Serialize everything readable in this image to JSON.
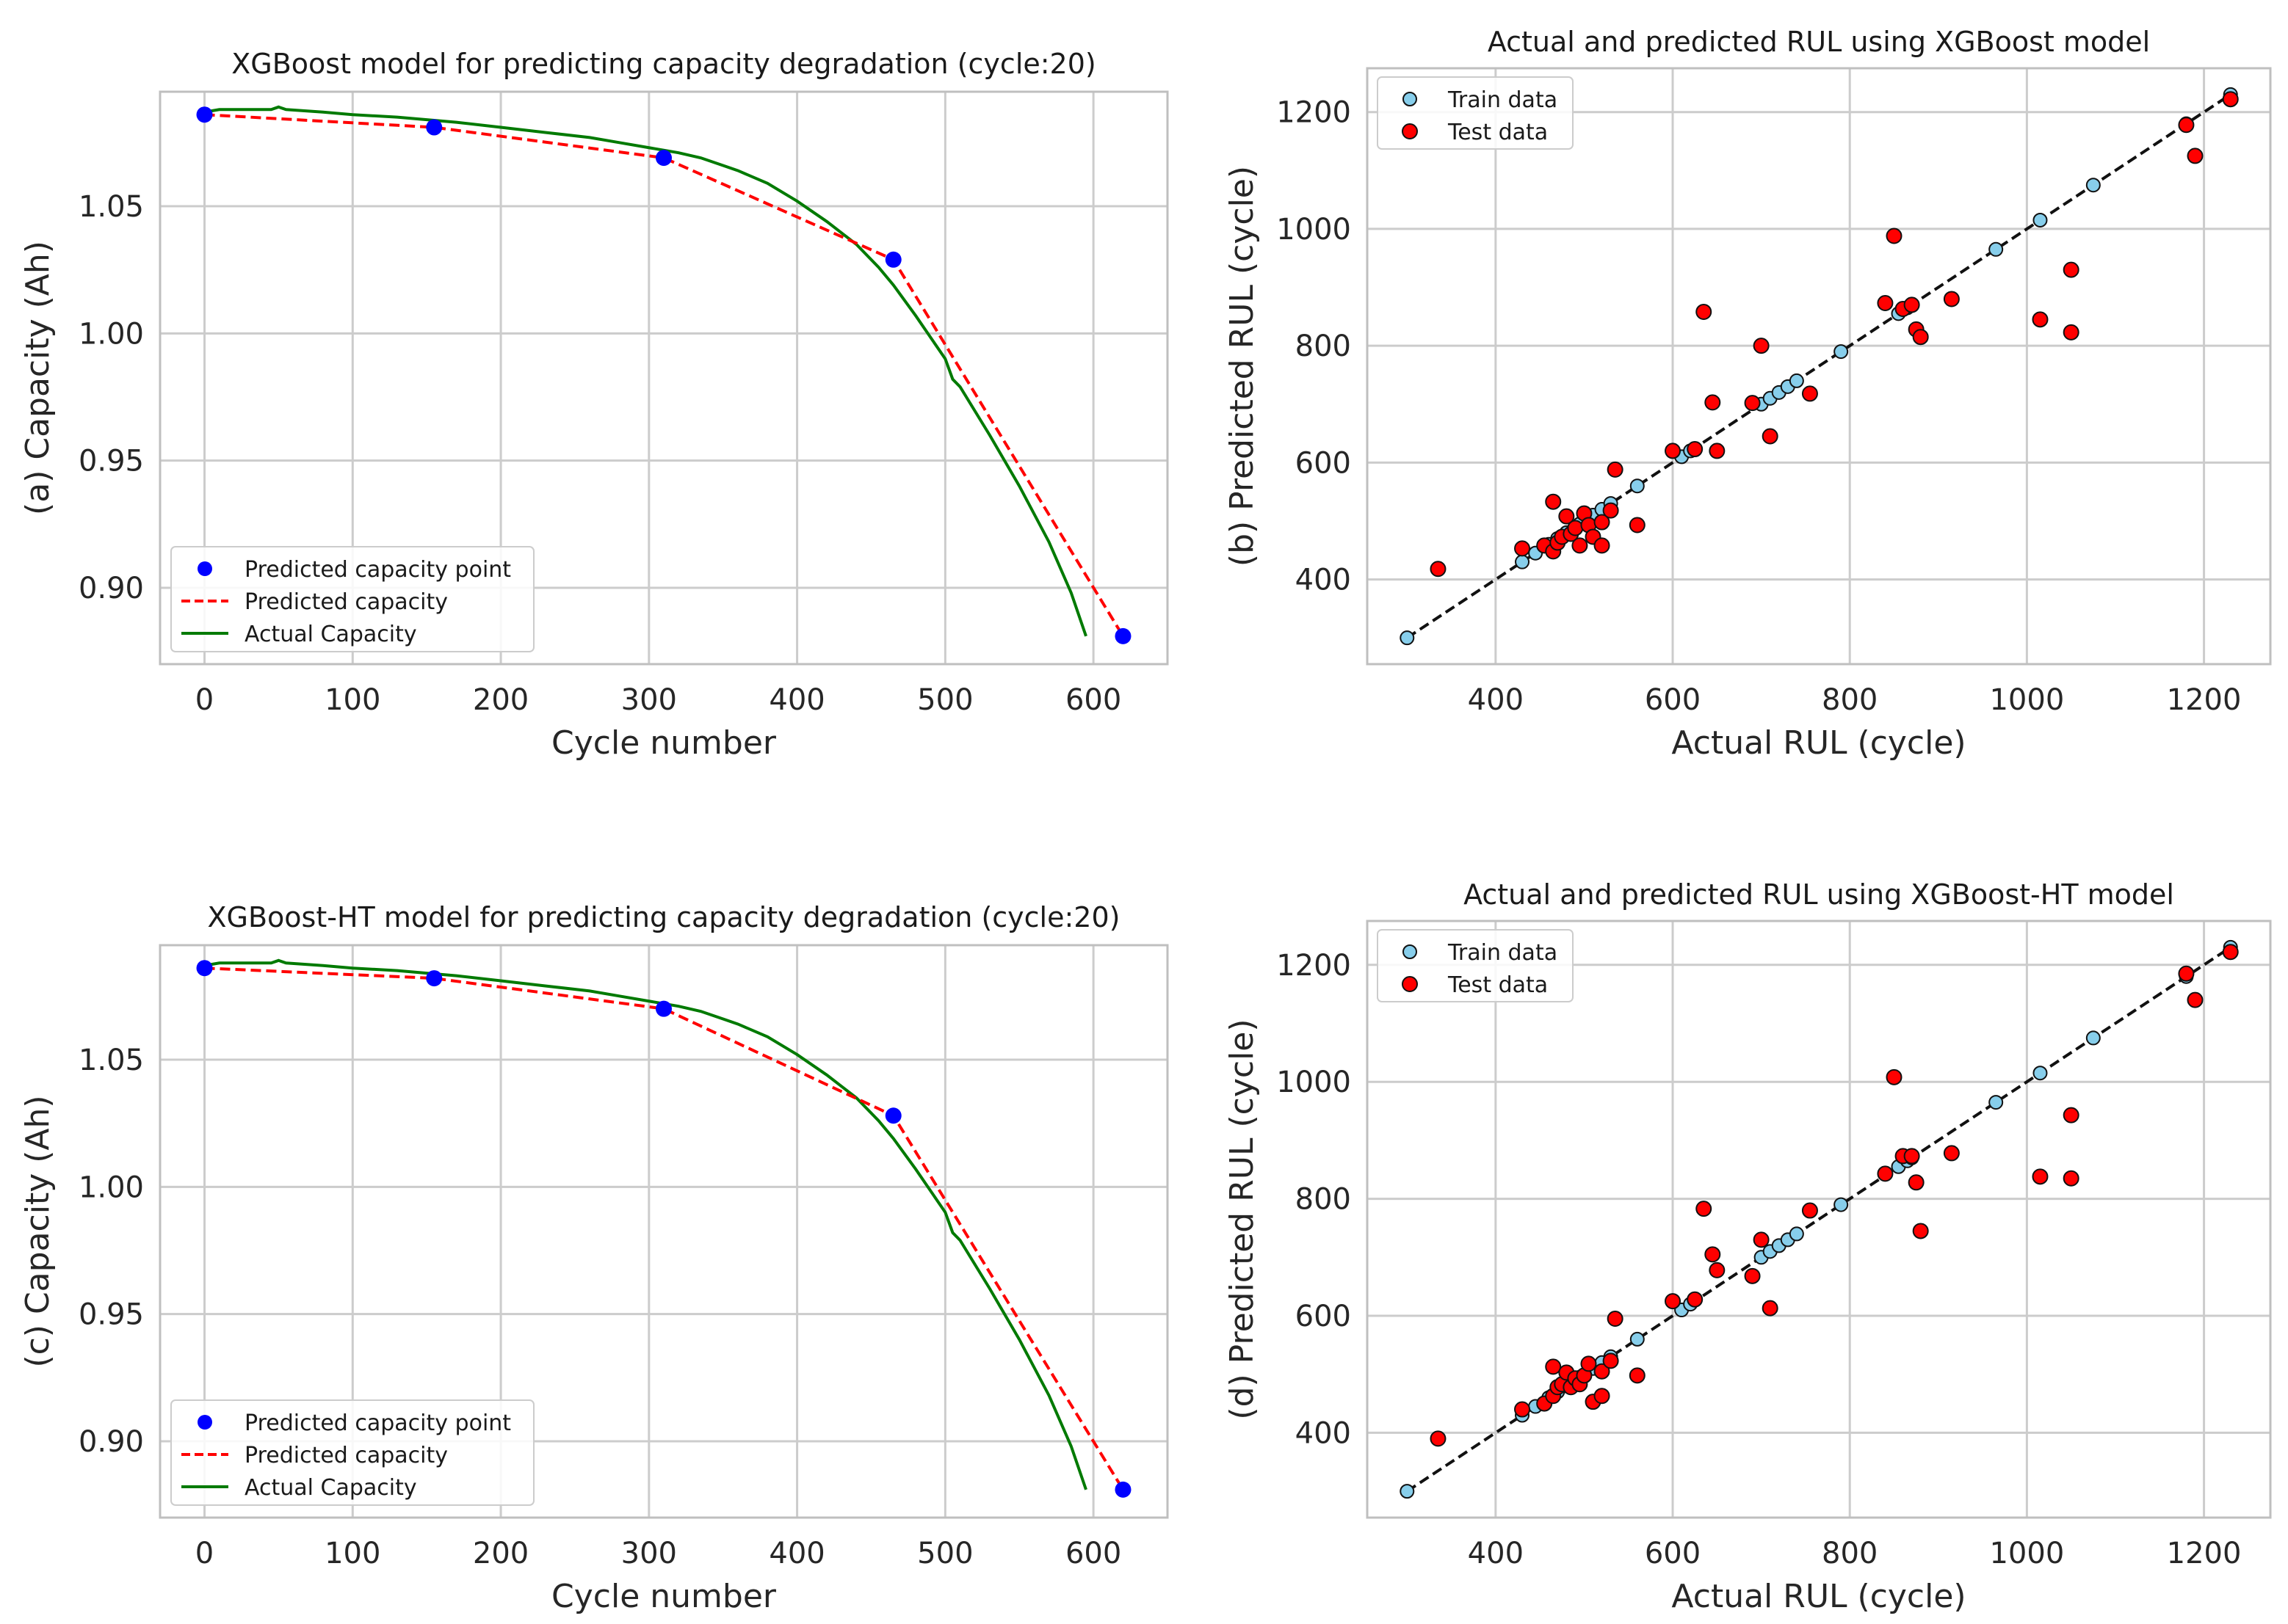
{
  "chart_data": [
    {
      "type": "line",
      "panel": "a",
      "title": "XGBoost model for predicting capacity degradation (cycle:20)",
      "xlabel": "Cycle number",
      "ylabel": "(a) Capacity (Ah)",
      "xlim": [
        -30,
        650
      ],
      "ylim": [
        0.87,
        1.095
      ],
      "xticks": [
        0,
        100,
        200,
        300,
        400,
        500,
        600
      ],
      "yticks": [
        0.9,
        0.95,
        1.0,
        1.05
      ],
      "ytick_labels": [
        "0.90",
        "0.95",
        "1.00",
        "1.05"
      ],
      "grid": true,
      "legend": "lower-left",
      "legend_entries": [
        "Predicted capacity point",
        "Predicted capacity",
        "Actual Capacity"
      ],
      "predicted_points": {
        "x": [
          0,
          155,
          310,
          465,
          620
        ],
        "y": [
          1.086,
          1.081,
          1.069,
          1.029,
          0.881
        ]
      },
      "actual": {
        "x": [
          0,
          10,
          30,
          45,
          50,
          55,
          80,
          100,
          130,
          150,
          170,
          200,
          230,
          260,
          280,
          300,
          320,
          335,
          350,
          360,
          380,
          400,
          420,
          440,
          455,
          465,
          480,
          500,
          505,
          510,
          530,
          550,
          570,
          585,
          595
        ],
        "y": [
          1.087,
          1.088,
          1.088,
          1.088,
          1.089,
          1.088,
          1.087,
          1.086,
          1.085,
          1.084,
          1.083,
          1.081,
          1.079,
          1.077,
          1.075,
          1.073,
          1.071,
          1.069,
          1.066,
          1.064,
          1.059,
          1.052,
          1.044,
          1.035,
          1.026,
          1.019,
          1.007,
          0.99,
          0.982,
          0.979,
          0.96,
          0.94,
          0.918,
          0.898,
          0.881
        ]
      },
      "colors": {
        "points": "#0000ff",
        "predicted": "#ff0000",
        "actual": "#007a00"
      }
    },
    {
      "type": "scatter",
      "panel": "b",
      "title": "Actual and predicted RUL using XGBoost model",
      "xlabel": "Actual RUL (cycle)",
      "ylabel": "(b) Predicted RUL (cycle)",
      "xlim": [
        255,
        1275
      ],
      "ylim": [
        255,
        1275
      ],
      "xticks": [
        400,
        600,
        800,
        1000,
        1200
      ],
      "yticks": [
        400,
        600,
        800,
        1000,
        1200
      ],
      "grid": true,
      "legend": "top-left",
      "legend_entries": [
        "Train data",
        "Test data"
      ],
      "diagonal": [
        [
          300,
          300
        ],
        [
          1230,
          1230
        ]
      ],
      "series": [
        {
          "name": "Train data",
          "x": [
            300,
            430,
            445,
            460,
            470,
            480,
            495,
            510,
            520,
            530,
            560,
            610,
            620,
            700,
            710,
            720,
            730,
            740,
            790,
            855,
            865,
            870,
            965,
            1015,
            1075,
            1180,
            1230
          ],
          "y": [
            300,
            430,
            445,
            460,
            470,
            480,
            495,
            510,
            520,
            530,
            560,
            610,
            620,
            700,
            710,
            720,
            730,
            740,
            790,
            855,
            865,
            870,
            965,
            1015,
            1075,
            1180,
            1230
          ]
        },
        {
          "name": "Test data",
          "x": [
            335,
            430,
            455,
            465,
            465,
            470,
            475,
            480,
            485,
            490,
            495,
            500,
            505,
            510,
            520,
            520,
            530,
            535,
            560,
            600,
            625,
            635,
            645,
            650,
            690,
            700,
            710,
            755,
            840,
            850,
            860,
            870,
            875,
            880,
            915,
            1015,
            1050,
            1050,
            1180,
            1190,
            1230
          ],
          "y": [
            418,
            453,
            458,
            448,
            533,
            463,
            473,
            508,
            478,
            488,
            458,
            513,
            493,
            473,
            498,
            458,
            518,
            588,
            493,
            620,
            623,
            858,
            703,
            620,
            702,
            800,
            645,
            718,
            873,
            988,
            863,
            870,
            828,
            815,
            880,
            845,
            930,
            823,
            1178,
            1125,
            1222
          ]
        }
      ],
      "colors": {
        "train": "#87ceeb",
        "test": "#ff0000",
        "diagonal": "#111111"
      }
    },
    {
      "type": "line",
      "panel": "c",
      "title": "XGBoost-HT model for predicting capacity degradation (cycle:20)",
      "xlabel": "Cycle number",
      "ylabel": "(c) Capacity (Ah)",
      "xlim": [
        -30,
        650
      ],
      "ylim": [
        0.87,
        1.095
      ],
      "xticks": [
        0,
        100,
        200,
        300,
        400,
        500,
        600
      ],
      "yticks": [
        0.9,
        0.95,
        1.0,
        1.05
      ],
      "ytick_labels": [
        "0.90",
        "0.95",
        "1.00",
        "1.05"
      ],
      "grid": true,
      "legend": "lower-left",
      "legend_entries": [
        "Predicted capacity point",
        "Predicted capacity",
        "Actual Capacity"
      ],
      "predicted_points": {
        "x": [
          0,
          155,
          310,
          465,
          620
        ],
        "y": [
          1.086,
          1.082,
          1.07,
          1.028,
          0.881
        ]
      },
      "actual": {
        "x": [
          0,
          10,
          30,
          45,
          50,
          55,
          80,
          100,
          130,
          150,
          170,
          200,
          230,
          260,
          280,
          300,
          320,
          335,
          350,
          360,
          380,
          400,
          420,
          440,
          455,
          465,
          480,
          500,
          505,
          510,
          530,
          550,
          570,
          585,
          595
        ],
        "y": [
          1.087,
          1.088,
          1.088,
          1.088,
          1.089,
          1.088,
          1.087,
          1.086,
          1.085,
          1.084,
          1.083,
          1.081,
          1.079,
          1.077,
          1.075,
          1.073,
          1.071,
          1.069,
          1.066,
          1.064,
          1.059,
          1.052,
          1.044,
          1.035,
          1.026,
          1.019,
          1.007,
          0.99,
          0.982,
          0.979,
          0.96,
          0.94,
          0.918,
          0.898,
          0.881
        ]
      },
      "colors": {
        "points": "#0000ff",
        "predicted": "#ff0000",
        "actual": "#007a00"
      }
    },
    {
      "type": "scatter",
      "panel": "d",
      "title": "Actual and predicted RUL using XGBoost-HT model",
      "xlabel": "Actual RUL (cycle)",
      "ylabel": "(d) Predicted RUL (cycle)",
      "xlim": [
        255,
        1275
      ],
      "ylim": [
        255,
        1275
      ],
      "xticks": [
        400,
        600,
        800,
        1000,
        1200
      ],
      "yticks": [
        400,
        600,
        800,
        1000,
        1200
      ],
      "grid": true,
      "legend": "top-left",
      "legend_entries": [
        "Train data",
        "Test data"
      ],
      "diagonal": [
        [
          300,
          300
        ],
        [
          1230,
          1230
        ]
      ],
      "series": [
        {
          "name": "Train data",
          "x": [
            300,
            430,
            445,
            460,
            470,
            480,
            495,
            510,
            520,
            530,
            560,
            610,
            620,
            700,
            710,
            720,
            730,
            740,
            790,
            855,
            865,
            870,
            965,
            1015,
            1075,
            1180,
            1230
          ],
          "y": [
            300,
            430,
            445,
            460,
            470,
            480,
            495,
            510,
            520,
            530,
            560,
            610,
            620,
            700,
            710,
            720,
            730,
            740,
            790,
            855,
            865,
            870,
            965,
            1015,
            1075,
            1180,
            1230
          ]
        },
        {
          "name": "Test data",
          "x": [
            335,
            430,
            455,
            465,
            465,
            470,
            475,
            480,
            485,
            490,
            495,
            500,
            505,
            510,
            520,
            520,
            530,
            535,
            560,
            600,
            625,
            635,
            645,
            650,
            690,
            700,
            710,
            755,
            840,
            850,
            860,
            870,
            875,
            880,
            915,
            1015,
            1050,
            1050,
            1180,
            1190,
            1230
          ],
          "y": [
            390,
            440,
            450,
            463,
            513,
            478,
            483,
            503,
            478,
            493,
            483,
            498,
            518,
            453,
            505,
            463,
            523,
            595,
            498,
            625,
            628,
            783,
            705,
            678,
            668,
            730,
            613,
            780,
            843,
            1008,
            873,
            873,
            828,
            745,
            878,
            838,
            943,
            835,
            1185,
            1140,
            1222
          ]
        }
      ],
      "colors": {
        "train": "#87ceeb",
        "test": "#ff0000",
        "diagonal": "#111111"
      }
    }
  ]
}
